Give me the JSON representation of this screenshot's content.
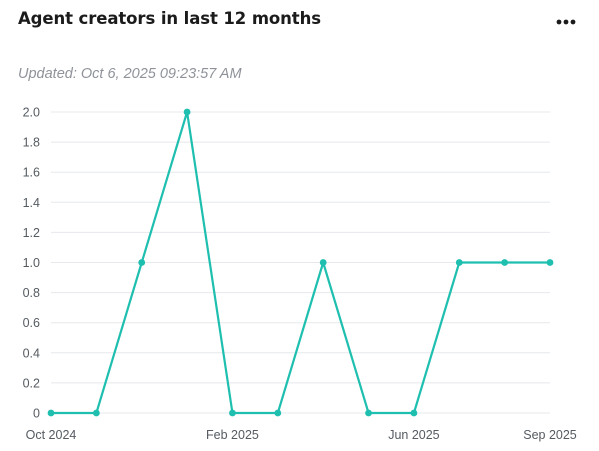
{
  "card": {
    "title": "Agent creators in last 12 months",
    "updated": "Updated: Oct 6, 2025 09:23:57 AM",
    "more_icon": "more-horizontal-icon"
  },
  "colors": {
    "line": "#1fbfb0",
    "grid": "#e6e8eb",
    "axis_text": "#555b61",
    "muted": "#8f9399"
  },
  "chart_data": {
    "type": "line",
    "x": [
      "2024-10",
      "2024-11",
      "2024-12",
      "2025-01",
      "2025-02",
      "2025-03",
      "2025-04",
      "2025-05",
      "2025-06",
      "2025-07",
      "2025-08",
      "2025-09"
    ],
    "series": [
      {
        "values": [
          0,
          0,
          1,
          2,
          0,
          0,
          1,
          0,
          0,
          1,
          1,
          1
        ]
      }
    ],
    "x_tick_labels": [
      {
        "x": "2024-10",
        "label": "Oct 2024"
      },
      {
        "x": "2025-02",
        "label": "Feb 2025"
      },
      {
        "x": "2025-06",
        "label": "Jun 2025"
      },
      {
        "x": "2025-09",
        "label": "Sep 2025"
      }
    ],
    "y_ticks": [
      "0",
      "0.2",
      "0.4",
      "0.6",
      "0.8",
      "1.0",
      "1.2",
      "1.4",
      "1.6",
      "1.8",
      "2.0"
    ],
    "ylim": [
      0,
      2
    ],
    "grid": true,
    "legend": "none",
    "markers": true
  }
}
